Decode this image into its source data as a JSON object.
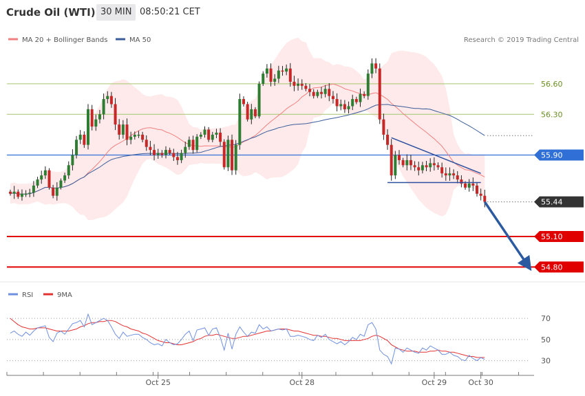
{
  "header": {
    "instrument": "Crude Oil (WTI)",
    "timeframe": "30 MIN",
    "clock": "08:50:21 CET"
  },
  "legend": {
    "ma20_label": "MA 20 + Bollinger Bands",
    "ma50_label": "MA 50",
    "credit": "Research © 2019 Trading Central",
    "rsi_label": "RSI",
    "rsi_ma_label": "9MA"
  },
  "colors": {
    "up": "#2e7d32",
    "down": "#c62828",
    "bands": "#fde3e3",
    "ma20": "#f08080",
    "ma50": "#3b5c9a",
    "support": "#e00000",
    "pivot": "#2f6fd6",
    "target_green": "#a4c66b",
    "arrow": "#2c5aa0",
    "rsi": "#6f8fe0",
    "rsi_ma": "#e53030"
  },
  "chart_data": [
    {
      "type": "candlestick",
      "title": "Crude Oil (WTI)",
      "ylim": [
        54.6,
        57.18
      ],
      "x_dates": [
        "Oct 25",
        "Oct 28",
        "Oct 29",
        "Oct 30"
      ],
      "x_date_index": [
        38,
        75,
        109,
        121
      ],
      "last_price": "55.44",
      "horizontal_levels": [
        {
          "value": 56.6,
          "label": "56.60",
          "style": "green"
        },
        {
          "value": 56.3,
          "label": "56.30",
          "style": "green"
        },
        {
          "value": 55.9,
          "label": "55.90",
          "style": "pivot"
        },
        {
          "value": 55.1,
          "label": "55.10",
          "style": "support"
        },
        {
          "value": 54.8,
          "label": "54.80",
          "style": "support"
        }
      ],
      "trendlines": [
        {
          "from": [
            98,
            56.07
          ],
          "to": [
            121,
            55.72
          ]
        },
        {
          "from": [
            97,
            55.63
          ],
          "to": [
            121,
            55.63
          ]
        }
      ],
      "forecast_arrow": {
        "from": [
          122,
          55.44
        ],
        "to": [
          133,
          54.82
        ]
      },
      "closes": [
        55.52,
        55.54,
        55.49,
        55.52,
        55.52,
        55.53,
        55.6,
        55.66,
        55.7,
        55.75,
        55.58,
        55.5,
        55.58,
        55.65,
        55.7,
        55.8,
        55.9,
        56.05,
        56.1,
        56.0,
        56.35,
        56.18,
        56.25,
        56.3,
        56.45,
        56.48,
        56.4,
        56.2,
        56.1,
        56.2,
        56.05,
        56.08,
        56.1,
        56.1,
        56.05,
        55.98,
        55.95,
        55.9,
        55.92,
        55.9,
        55.95,
        55.92,
        55.88,
        55.85,
        55.92,
        55.98,
        56.05,
        55.95,
        56.08,
        56.1,
        56.15,
        56.05,
        56.1,
        56.12,
        56.03,
        55.78,
        56.05,
        55.75,
        56.0,
        56.45,
        56.4,
        56.25,
        56.35,
        56.28,
        56.6,
        56.7,
        56.75,
        56.62,
        56.65,
        56.73,
        56.72,
        56.75,
        56.62,
        56.58,
        56.6,
        56.58,
        56.55,
        56.52,
        56.48,
        56.52,
        56.5,
        56.55,
        56.48,
        56.45,
        56.38,
        56.4,
        56.35,
        56.38,
        56.45,
        56.42,
        56.5,
        56.48,
        56.7,
        56.8,
        56.75,
        56.25,
        56.1,
        56.0,
        55.7,
        55.9,
        55.85,
        55.8,
        55.85,
        55.8,
        55.78,
        55.75,
        55.8,
        55.78,
        55.82,
        55.8,
        55.78,
        55.72,
        55.7,
        55.72,
        55.7,
        55.66,
        55.62,
        55.58,
        55.62,
        55.6,
        55.52,
        55.5,
        55.44
      ],
      "rsi": {
        "ylim": [
          20,
          85
        ],
        "ticks": [
          "70",
          "50",
          "30"
        ],
        "rsi_values": [
          56,
          58,
          55,
          53,
          57,
          54,
          58,
          61,
          62,
          63,
          52,
          48,
          56,
          58,
          55,
          60,
          65,
          66,
          68,
          62,
          74,
          64,
          66,
          68,
          70,
          68,
          62,
          55,
          51,
          57,
          53,
          54,
          55,
          55,
          52,
          50,
          47,
          45,
          46,
          44,
          50,
          47,
          45,
          46,
          50,
          55,
          58,
          49,
          59,
          60,
          61,
          54,
          60,
          61,
          52,
          40,
          56,
          41,
          55,
          62,
          57,
          53,
          57,
          56,
          64,
          60,
          62,
          58,
          59,
          60,
          59,
          60,
          53,
          53,
          54,
          53,
          52,
          50,
          49,
          54,
          52,
          55,
          50,
          48,
          46,
          48,
          45,
          48,
          52,
          50,
          55,
          53,
          64,
          66,
          60,
          40,
          36,
          34,
          27,
          42,
          41,
          38,
          42,
          40,
          38,
          37,
          42,
          40,
          44,
          42,
          40,
          36,
          36,
          38,
          35,
          34,
          31,
          30,
          35,
          32,
          30,
          33,
          31
        ],
        "ma_values": [
          70,
          67,
          64,
          62,
          61,
          60,
          60,
          61,
          61,
          61,
          60,
          59,
          58,
          58,
          58,
          58,
          59,
          60,
          62,
          63,
          65,
          66,
          66,
          67,
          67,
          68,
          68,
          67,
          65,
          63,
          62,
          60,
          59,
          58,
          56,
          55,
          53,
          51,
          49,
          48,
          47,
          47,
          46,
          45,
          45,
          46,
          47,
          48,
          50,
          51,
          53,
          54,
          54,
          55,
          54,
          53,
          52,
          51,
          51,
          52,
          53,
          53,
          54,
          55,
          56,
          57,
          58,
          58,
          59,
          60,
          60,
          60,
          59,
          58,
          58,
          57,
          56,
          55,
          54,
          54,
          53,
          53,
          52,
          51,
          51,
          50,
          49,
          49,
          49,
          49,
          49,
          50,
          51,
          53,
          54,
          53,
          51,
          49,
          45,
          43,
          41,
          40,
          39,
          39,
          39,
          38,
          38,
          38,
          39,
          39,
          40,
          39,
          39,
          38,
          38,
          37,
          36,
          35,
          34,
          34,
          33,
          33,
          33
        ]
      }
    }
  ]
}
